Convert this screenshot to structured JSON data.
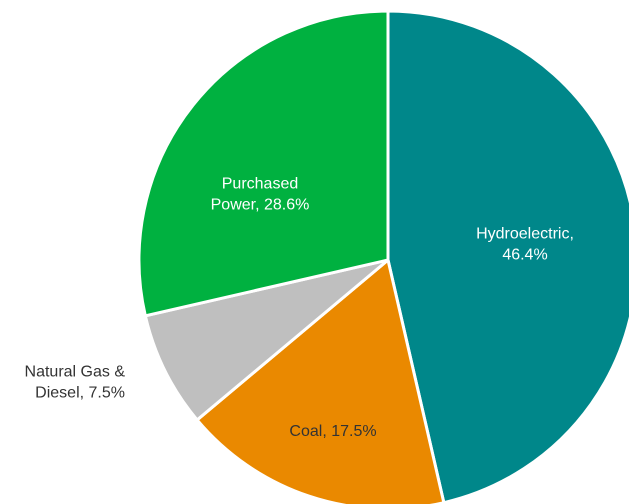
{
  "chart_data": {
    "type": "pie",
    "values": [
      46.4,
      17.5,
      7.5,
      28.6
    ],
    "value_labels": [
      [
        "Hydroelectric,",
        "46.4%"
      ],
      [
        "Coal, 17.5%"
      ],
      [
        "Natural Gas &",
        "Diesel, 7.5%"
      ],
      [
        "Purchased",
        "Power, 28.6%"
      ]
    ],
    "colors": [
      "#00878a",
      "#ea8900",
      "#bfbfbf",
      "#00b140"
    ]
  }
}
